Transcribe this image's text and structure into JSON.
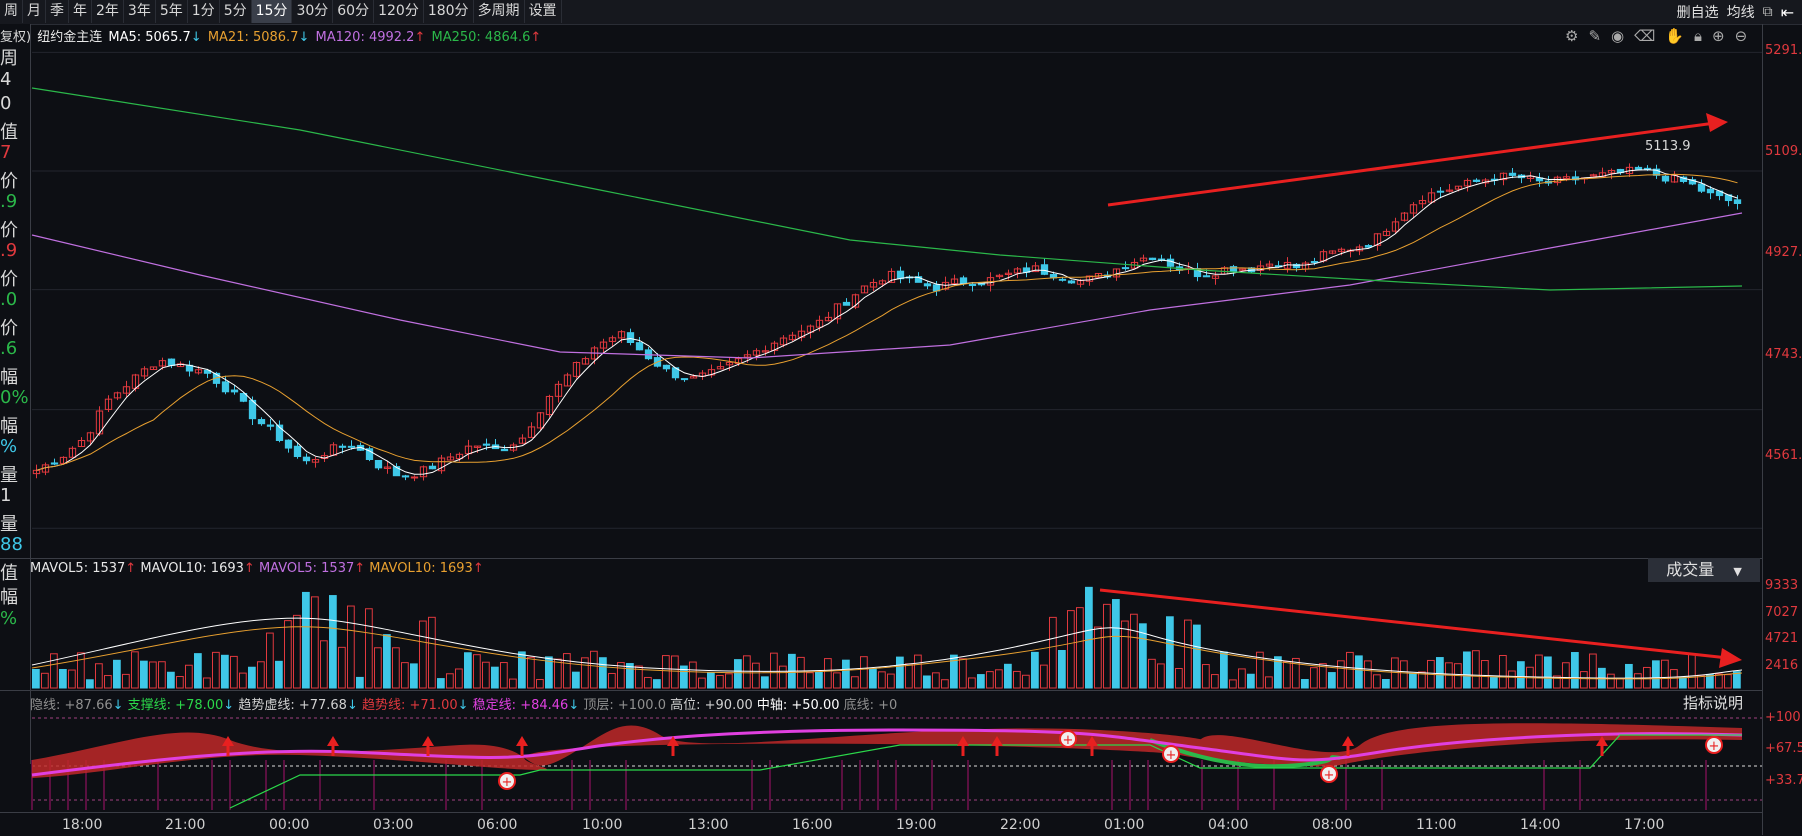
{
  "toolbar": {
    "periods": [
      "周",
      "月",
      "季",
      "年",
      "2年",
      "3年",
      "5年",
      "1分",
      "5分",
      "15分",
      "30分",
      "60分",
      "120分",
      "180分",
      "多周期",
      "设置"
    ],
    "active_period": "15分",
    "right_buttons": [
      "删自选",
      "均线"
    ]
  },
  "legend": {
    "left_cut": "复权)",
    "symbol": "纽约金主连",
    "ma5": "MA5: 5065.7",
    "ma5_arrow": "↓",
    "ma21": "MA21: 5086.7",
    "ma21_arrow": "↓",
    "ma120": "MA120: 4992.2",
    "ma120_arrow": "↑",
    "ma250": "MA250: 4864.6",
    "ma250_arrow": "↑"
  },
  "left_panel": [
    {
      "text": "周",
      "color": "#d8d8d8"
    },
    {
      "text": "4",
      "color": "#d8d8d8"
    },
    {
      "text": "0",
      "color": "#d8d8d8"
    },
    {
      "text": "值",
      "color": "#d8d8d8"
    },
    {
      "text": "7",
      "color": "#e0393e"
    },
    {
      "text": "价",
      "color": "#d8d8d8"
    },
    {
      "text": ".9",
      "color": "#2bb84a"
    },
    {
      "text": "价",
      "color": "#d8d8d8"
    },
    {
      "text": ".9",
      "color": "#e0393e"
    },
    {
      "text": "价",
      "color": "#d8d8d8"
    },
    {
      "text": ".0",
      "color": "#2bb84a"
    },
    {
      "text": "价",
      "color": "#d8d8d8"
    },
    {
      "text": ".6",
      "color": "#2bb84a"
    },
    {
      "text": "幅",
      "color": "#d8d8d8"
    },
    {
      "text": "0%",
      "color": "#2bb84a"
    },
    {
      "text": "幅",
      "color": "#d8d8d8"
    },
    {
      "text": "%",
      "color": "#3fc8e8"
    },
    {
      "text": "量",
      "color": "#d8d8d8"
    },
    {
      "text": "1",
      "color": "#d8d8d8"
    },
    {
      "text": "量",
      "color": "#d8d8d8"
    },
    {
      "text": "88",
      "color": "#3fc8e8"
    },
    {
      "text": "值",
      "color": "#d8d8d8"
    },
    {
      "text": "幅",
      "color": "#d8d8d8"
    },
    {
      "text": "%",
      "color": "#2bb84a"
    }
  ],
  "main_axis": [
    "5291.",
    "5109.",
    "4927.",
    "4743.",
    "4561."
  ],
  "annotation_high": "5113.9",
  "volume": {
    "legend": [
      {
        "t": "MAVOL5: 1537",
        "c": "#e8e8e8"
      },
      {
        "t": "↑",
        "c": "#e0393e"
      },
      {
        "t": " MAVOL10: 1693",
        "c": "#e8e8e8"
      },
      {
        "t": "↑",
        "c": "#e0393e"
      },
      {
        "t": " MAVOL5: 1537",
        "c": "#c070e0"
      },
      {
        "t": "↑",
        "c": "#e0393e"
      },
      {
        "t": " MAVOL10: 1693",
        "c": "#e8a030"
      },
      {
        "t": "↑",
        "c": "#e0393e"
      }
    ],
    "dropdown": "成交量",
    "axis": [
      "9333",
      "7027",
      "4721",
      "2416"
    ]
  },
  "indicator": {
    "legend": [
      {
        "t": "隐线: +87.66",
        "c": "#909090"
      },
      {
        "t": "↓",
        "c": "#3fc8e8"
      },
      {
        "t": " 支撑线: +78.00",
        "c": "#2bd84a"
      },
      {
        "t": "↓",
        "c": "#3fc8e8"
      },
      {
        "t": " 趋势虚线: +77.68",
        "c": "#d0d0d0"
      },
      {
        "t": "↓",
        "c": "#3fc8e8"
      },
      {
        "t": " 趋势线: +71.00",
        "c": "#e0393e"
      },
      {
        "t": "↓",
        "c": "#3fc8e8"
      },
      {
        "t": " 稳定线: +84.46",
        "c": "#e040e0"
      },
      {
        "t": "↓",
        "c": "#3fc8e8"
      },
      {
        "t": " 顶层: +100.0",
        "c": "#909090"
      },
      {
        "t": " 高位: +90.00",
        "c": "#d0d0d0"
      },
      {
        "t": " 中轴: +50.00",
        "c": "#ffffff"
      },
      {
        "t": " 底线: +0",
        "c": "#909090"
      }
    ],
    "help": "指标说明",
    "axis": [
      "+100.",
      "+67.5",
      "+33.7"
    ]
  },
  "xaxis": [
    "18:00",
    "21:00",
    "00:00",
    "03:00",
    "06:00",
    "10:00",
    "13:00",
    "16:00",
    "19:00",
    "22:00",
    "01:00",
    "04:00",
    "08:00",
    "11:00",
    "14:00",
    "17:00"
  ],
  "colors": {
    "up": "#e0393e",
    "down": "#3fc8e8",
    "ma5": "#ffffff",
    "ma21": "#e8a030",
    "ma120": "#c070e0",
    "ma250": "#2bb84a"
  },
  "chart_data": {
    "type": "candlestick",
    "close_approx": [
      4650,
      4670,
      4700,
      4760,
      4790,
      4820,
      4810,
      4800,
      4770,
      4730,
      4700,
      4660,
      4680,
      4690,
      4660,
      4640,
      4650,
      4670,
      4690,
      4680,
      4700,
      4760,
      4800,
      4840,
      4860,
      4830,
      4800,
      4790,
      4800,
      4820,
      4840,
      4860,
      4870,
      4900,
      4930,
      4950,
      4940,
      4930,
      4940,
      4940,
      4950,
      4960,
      4950,
      4940,
      4950,
      4970,
      4980,
      4960,
      4950,
      4960,
      4960,
      4970,
      4960,
      4980,
      4990,
      5000,
      5040,
      5070,
      5080,
      5090,
      5100,
      5100,
      5090,
      5095,
      5100,
      5105,
      5110,
      5100,
      5090,
      5070,
      5060
    ],
    "ylim": [
      4520,
      5310
    ],
    "ma250_trend": "down-then-flat",
    "ma120_trend": "down-then-up"
  }
}
